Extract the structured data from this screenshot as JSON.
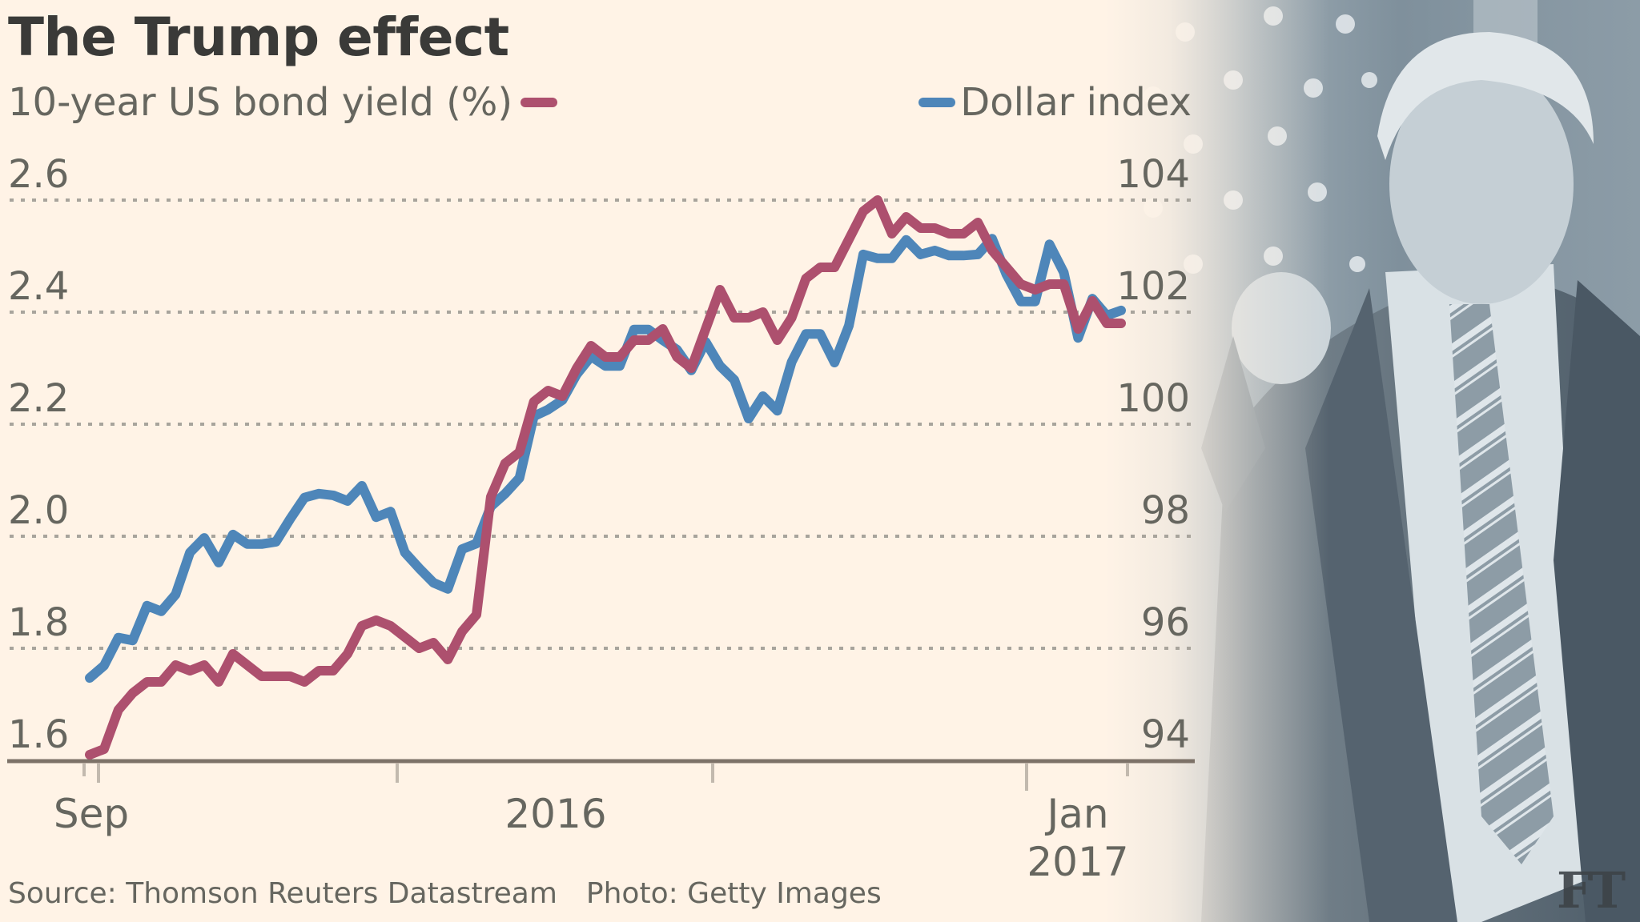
{
  "title": "The Trump effect",
  "legend": {
    "left_label": "10-year US bond yield (%)",
    "right_label": "Dollar index"
  },
  "footer": {
    "source": "Source: Thomson Reuters Datastream",
    "photo": "Photo: Getty Images"
  },
  "logo": "FT",
  "colors": {
    "background": "#fff3e6",
    "bond_yield": "#ad506e",
    "dollar_index": "#4e86b9",
    "text": "#66665f",
    "title": "#3a3a38",
    "grid": "#a8a49c",
    "axis": "#7d7268"
  },
  "chart_data": {
    "type": "line",
    "title": "The Trump effect",
    "xlabel": "",
    "left_axis": {
      "label": "10-year US bond yield (%)",
      "range": [
        1.6,
        2.6
      ],
      "ticks": [
        "1.6",
        "1.8",
        "2.0",
        "2.2",
        "2.4",
        "2.6"
      ]
    },
    "right_axis": {
      "label": "Dollar index",
      "range": [
        94,
        104
      ],
      "ticks": [
        "94",
        "96",
        "98",
        "100",
        "102",
        "104"
      ]
    },
    "x_ticks": [
      {
        "label": "Sep",
        "sublabel": ""
      },
      {
        "label": "2016",
        "sublabel": ""
      },
      {
        "label": "Jan",
        "sublabel": "2017"
      }
    ],
    "grid": true,
    "legend": "top",
    "x_range_description": "late Aug 2016 to mid Jan 2017, roughly every two trading days",
    "series": [
      {
        "name": "10-year US bond yield (%)",
        "axis": "left",
        "color": "#ad506e",
        "values": [
          1.61,
          1.62,
          1.69,
          1.72,
          1.74,
          1.74,
          1.77,
          1.76,
          1.77,
          1.74,
          1.79,
          1.77,
          1.75,
          1.75,
          1.75,
          1.74,
          1.76,
          1.76,
          1.79,
          1.84,
          1.85,
          1.84,
          1.82,
          1.8,
          1.81,
          1.78,
          1.83,
          1.86,
          2.07,
          2.13,
          2.15,
          2.24,
          2.26,
          2.25,
          2.3,
          2.34,
          2.32,
          2.32,
          2.35,
          2.35,
          2.37,
          2.32,
          2.3,
          2.37,
          2.44,
          2.39,
          2.39,
          2.4,
          2.35,
          2.39,
          2.46,
          2.48,
          2.48,
          2.53,
          2.58,
          2.6,
          2.54,
          2.57,
          2.55,
          2.55,
          2.54,
          2.54,
          2.56,
          2.51,
          2.48,
          2.45,
          2.44,
          2.45,
          2.45,
          2.37,
          2.42,
          2.38,
          2.38
        ]
      },
      {
        "name": "Dollar index",
        "axis": "right",
        "color": "#4e86b9",
        "values": [
          95.47,
          95.69,
          96.19,
          96.14,
          96.76,
          96.66,
          96.96,
          97.71,
          97.97,
          97.53,
          98.03,
          97.86,
          97.86,
          97.9,
          98.31,
          98.69,
          98.76,
          98.73,
          98.63,
          98.9,
          98.34,
          98.44,
          97.71,
          97.43,
          97.17,
          97.06,
          97.77,
          97.87,
          98.53,
          98.76,
          99.04,
          100.14,
          100.26,
          100.43,
          100.89,
          101.21,
          101.04,
          101.04,
          101.69,
          101.69,
          101.5,
          101.33,
          100.96,
          101.47,
          101.04,
          100.79,
          100.1,
          100.5,
          100.24,
          101.11,
          101.61,
          101.61,
          101.1,
          101.76,
          103.03,
          102.96,
          102.96,
          103.29,
          103.03,
          103.1,
          103.01,
          103.01,
          103.03,
          103.31,
          102.67,
          102.19,
          102.19,
          103.21,
          102.71,
          101.54,
          102.24,
          101.94,
          102.03
        ]
      }
    ]
  }
}
